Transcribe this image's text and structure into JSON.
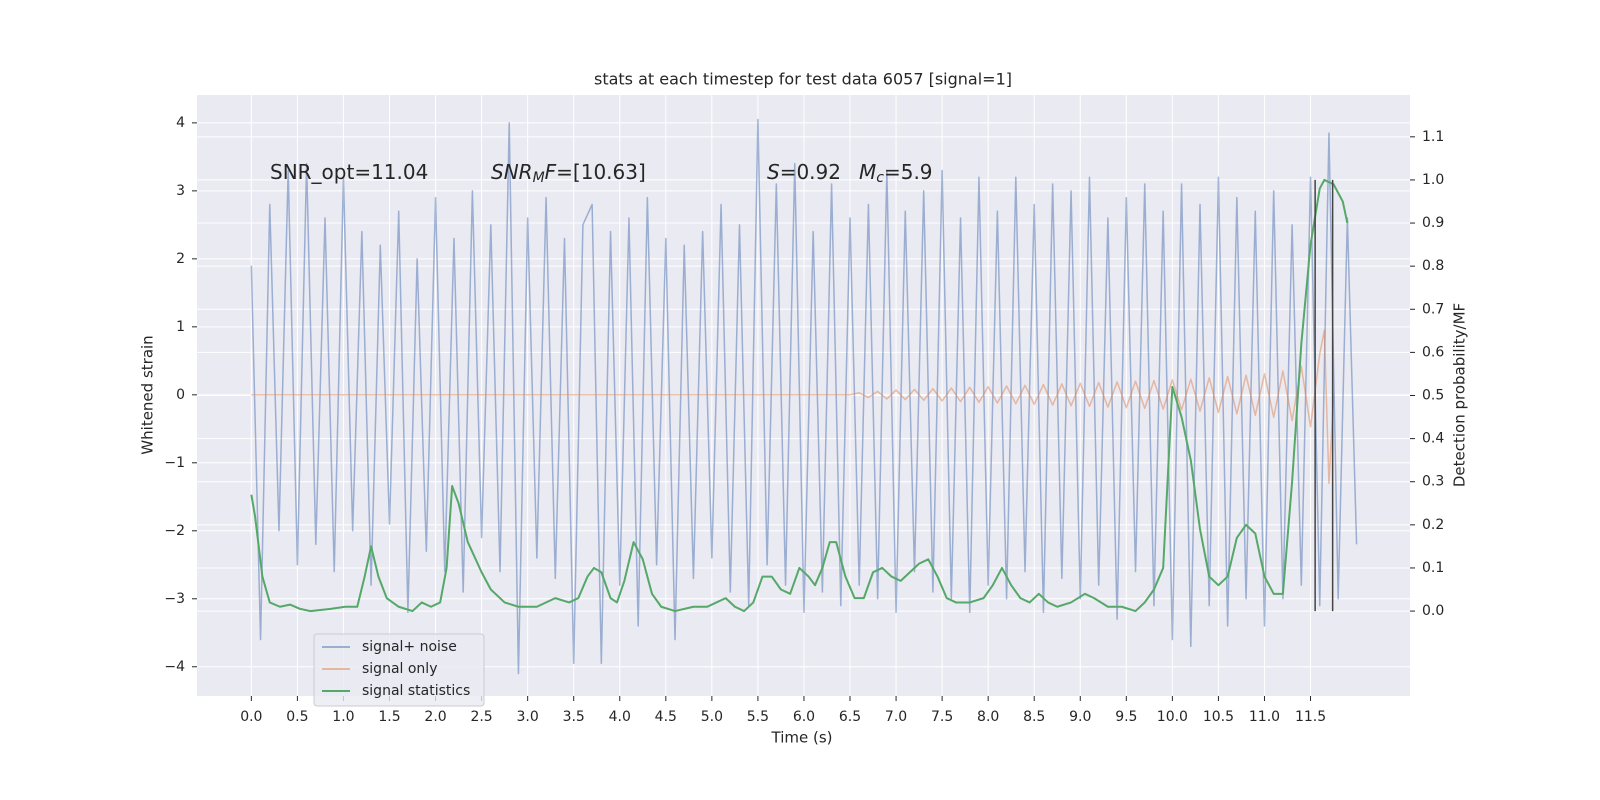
{
  "chart_data": {
    "type": "line",
    "title": "stats at each timestep for test data 6057 [signal=1]",
    "xlabel": "Time (s)",
    "ylabel": "Whitened strain",
    "y2label": "Detection probability/MF",
    "xlim": [
      -0.59,
      12.58
    ],
    "ylim": [
      -4.43,
      4.41
    ],
    "y2lim": [
      -0.197,
      1.197
    ],
    "grid": true,
    "legend": "lower left",
    "xticks": [
      {
        "value": 0,
        "label": "0.0"
      },
      {
        "value": 0.5,
        "label": "0.5"
      },
      {
        "value": 1,
        "label": "1.0"
      },
      {
        "value": 1.5,
        "label": "1.5"
      },
      {
        "value": 2,
        "label": "2.0"
      },
      {
        "value": 2.5,
        "label": "2.5"
      },
      {
        "value": 3,
        "label": "3.0"
      },
      {
        "value": 3.5,
        "label": "3.5"
      },
      {
        "value": 4,
        "label": "4.0"
      },
      {
        "value": 4.5,
        "label": "4.5"
      },
      {
        "value": 5,
        "label": "5.0"
      },
      {
        "value": 5.5,
        "label": "5.5"
      },
      {
        "value": 6,
        "label": "6.0"
      },
      {
        "value": 6.5,
        "label": "6.5"
      },
      {
        "value": 7,
        "label": "7.0"
      },
      {
        "value": 7.5,
        "label": "7.5"
      },
      {
        "value": 8,
        "label": "8.0"
      },
      {
        "value": 8.5,
        "label": "8.5"
      },
      {
        "value": 9,
        "label": "9.0"
      },
      {
        "value": 9.5,
        "label": "9.5"
      },
      {
        "value": 10,
        "label": "10.0"
      },
      {
        "value": 10.5,
        "label": "10.5"
      },
      {
        "value": 11,
        "label": "11.0"
      },
      {
        "value": 11.5,
        "label": "11.5"
      }
    ],
    "yticks": [
      {
        "value": -4,
        "label": "−4"
      },
      {
        "value": -3,
        "label": "−3"
      },
      {
        "value": -2,
        "label": "−2"
      },
      {
        "value": -1,
        "label": "−1"
      },
      0,
      1,
      2,
      3,
      4
    ],
    "y2ticks": [
      {
        "value": 0,
        "label": "0.0"
      },
      {
        "value": 0.1,
        "label": "0.1"
      },
      {
        "value": 0.2,
        "label": "0.2"
      },
      {
        "value": 0.3,
        "label": "0.3"
      },
      {
        "value": 0.4,
        "label": "0.4"
      },
      {
        "value": 0.5,
        "label": "0.5"
      },
      {
        "value": 0.6,
        "label": "0.6"
      },
      {
        "value": 0.7,
        "label": "0.7"
      },
      {
        "value": 0.8,
        "label": "0.8"
      },
      {
        "value": 0.9,
        "label": "0.9"
      },
      {
        "value": 1,
        "label": "1.0"
      },
      {
        "value": 1.1,
        "label": "1.1"
      }
    ],
    "annotations": [
      [
        {
          "text": "SNR_opt=11.04"
        }
      ],
      [
        {
          "text": "SNR",
          "italic": true
        },
        {
          "text": "M",
          "italic": true,
          "sub": true
        },
        {
          "text": "F",
          "italic": true
        },
        {
          "text": "=[10.63]"
        }
      ],
      [
        {
          "text": "S",
          "italic": true
        },
        {
          "text": "=0.92"
        }
      ],
      [
        {
          "text": "M",
          "italic": true
        },
        {
          "text": "c",
          "italic": true,
          "sub": true
        },
        {
          "text": "=5.9"
        }
      ]
    ],
    "vlines": {
      "x": [
        11.55,
        11.74
      ],
      "y2_span": [
        0,
        1
      ],
      "color": "#444444"
    },
    "series": [
      {
        "name": "signal+ noise",
        "color": "#4c72b0",
        "opacity": 0.5,
        "x": [
          0,
          0.1,
          0.2,
          0.3,
          0.4,
          0.5,
          0.6,
          0.7,
          0.8,
          0.9,
          1,
          1.1,
          1.2,
          1.3,
          1.4,
          1.5,
          1.6,
          1.7,
          1.8,
          1.9,
          2,
          2.1,
          2.2,
          2.3,
          2.4,
          2.5,
          2.6,
          2.7,
          2.8,
          2.9,
          3,
          3.1,
          3.2,
          3.3,
          3.4,
          3.5,
          3.6,
          3.7,
          3.8,
          3.9,
          4,
          4.1,
          4.2,
          4.3,
          4.4,
          4.5,
          4.6,
          4.7,
          4.8,
          4.9,
          5,
          5.1,
          5.2,
          5.3,
          5.4,
          5.5,
          5.6,
          5.7,
          5.8,
          5.9,
          6,
          6.1,
          6.2,
          6.3,
          6.4,
          6.5,
          6.6,
          6.7,
          6.8,
          6.9,
          7,
          7.1,
          7.2,
          7.3,
          7.4,
          7.5,
          7.6,
          7.7,
          7.8,
          7.9,
          8,
          8.1,
          8.2,
          8.3,
          8.4,
          8.5,
          8.6,
          8.7,
          8.8,
          8.9,
          9,
          9.1,
          9.2,
          9.3,
          9.4,
          9.5,
          9.6,
          9.7,
          9.8,
          9.9,
          10,
          10.1,
          10.2,
          10.3,
          10.4,
          10.5,
          10.6,
          10.7,
          10.8,
          10.9,
          11,
          11.1,
          11.2,
          11.3,
          11.4,
          11.5,
          11.6,
          11.7,
          11.8,
          11.9,
          12
        ],
        "values": [
          1.9,
          -3.6,
          2.8,
          -2.0,
          3.3,
          -2.5,
          3.4,
          -2.2,
          2.6,
          -2.6,
          3.2,
          -2.0,
          2.4,
          -2.8,
          2.2,
          -1.9,
          2.7,
          -3.2,
          2.0,
          -2.3,
          2.9,
          -2.6,
          2.3,
          -2.9,
          3.0,
          -2.1,
          2.5,
          -2.6,
          4.0,
          -4.1,
          2.6,
          -2.4,
          2.9,
          -2.7,
          2.3,
          -3.95,
          2.5,
          2.8,
          -3.95,
          2.4,
          -2.8,
          2.6,
          -3.4,
          2.9,
          -2.5,
          2.3,
          -3.6,
          2.2,
          -2.7,
          2.4,
          -2.4,
          2.8,
          -2.9,
          2.5,
          -3.1,
          4.05,
          -2.5,
          3.1,
          -2.8,
          3.4,
          -3.2,
          2.4,
          -2.9,
          3.1,
          -3.1,
          2.6,
          -2.8,
          2.8,
          -3.0,
          3.3,
          -3.2,
          2.7,
          -2.6,
          3.0,
          -2.9,
          3.3,
          -3.0,
          2.6,
          -3.2,
          3.2,
          -2.8,
          2.7,
          -3.0,
          3.2,
          -2.6,
          2.8,
          -3.2,
          3.1,
          -2.7,
          3.0,
          -3.0,
          3.2,
          -2.8,
          2.6,
          -3.3,
          2.9,
          -2.6,
          3.1,
          -3.1,
          2.7,
          -3.6,
          3.1,
          -3.7,
          2.8,
          -3.1,
          3.2,
          -3.4,
          2.9,
          -3.0,
          2.7,
          -3.4,
          3.0,
          -3.0,
          2.5,
          -2.8,
          3.2,
          -3.1,
          3.85,
          -3.0,
          2.6,
          -2.2
        ]
      },
      {
        "name": "signal only",
        "color": "#dd8452",
        "opacity": 0.5,
        "x": [
          0,
          6.5,
          6.6,
          6.7,
          6.8,
          6.9,
          7,
          7.1,
          7.2,
          7.3,
          7.4,
          7.5,
          7.6,
          7.7,
          7.8,
          7.9,
          8,
          8.1,
          8.2,
          8.3,
          8.4,
          8.5,
          8.6,
          8.7,
          8.8,
          8.9,
          9,
          9.1,
          9.2,
          9.3,
          9.4,
          9.5,
          9.6,
          9.7,
          9.8,
          9.9,
          10,
          10.1,
          10.2,
          10.3,
          10.4,
          10.5,
          10.6,
          10.7,
          10.8,
          10.9,
          11,
          11.1,
          11.2,
          11.3,
          11.4,
          11.5,
          11.6,
          11.65,
          11.7,
          11.75
        ],
        "values": [
          0,
          0,
          0.03,
          -0.04,
          0.05,
          -0.06,
          0.07,
          -0.07,
          0.08,
          -0.08,
          0.09,
          -0.09,
          0.1,
          -0.1,
          0.11,
          -0.11,
          0.12,
          -0.12,
          0.13,
          -0.13,
          0.14,
          -0.14,
          0.15,
          -0.15,
          0.16,
          -0.16,
          0.17,
          -0.17,
          0.18,
          -0.18,
          0.19,
          -0.19,
          0.2,
          -0.2,
          0.21,
          -0.21,
          0.22,
          -0.22,
          0.23,
          -0.24,
          0.25,
          -0.26,
          0.27,
          -0.28,
          0.29,
          -0.3,
          0.31,
          -0.33,
          0.35,
          -0.38,
          0.42,
          -0.47,
          0.6,
          0.95,
          -1.3,
          0
        ]
      },
      {
        "name": "signal statistics",
        "color": "#55a868",
        "opacity": 1,
        "axis": "y2",
        "x": [
          0,
          0.04,
          0.12,
          0.2,
          0.31,
          0.42,
          0.53,
          0.64,
          0.86,
          1.02,
          1.15,
          1.23,
          1.3,
          1.38,
          1.47,
          1.6,
          1.75,
          1.85,
          1.95,
          2.05,
          2.12,
          2.18,
          2.25,
          2.35,
          2.5,
          2.6,
          2.75,
          2.9,
          3.1,
          3.3,
          3.45,
          3.55,
          3.65,
          3.72,
          3.8,
          3.9,
          3.97,
          4.05,
          4.15,
          4.25,
          4.35,
          4.45,
          4.6,
          4.8,
          4.95,
          5.05,
          5.15,
          5.25,
          5.35,
          5.45,
          5.55,
          5.65,
          5.75,
          5.85,
          5.95,
          6.05,
          6.12,
          6.2,
          6.28,
          6.35,
          6.45,
          6.55,
          6.65,
          6.75,
          6.85,
          6.95,
          7.05,
          7.15,
          7.25,
          7.35,
          7.45,
          7.55,
          7.65,
          7.8,
          7.95,
          8.05,
          8.15,
          8.25,
          8.35,
          8.45,
          8.55,
          8.65,
          8.75,
          8.9,
          9.05,
          9.15,
          9.3,
          9.45,
          9.6,
          9.7,
          9.8,
          9.9,
          10,
          10.1,
          10.2,
          10.3,
          10.4,
          10.5,
          10.6,
          10.7,
          10.8,
          10.9,
          11,
          11.1,
          11.2,
          11.3,
          11.4,
          11.5,
          11.6,
          11.65,
          11.75,
          11.85,
          11.9
        ],
        "values": [
          0.27,
          0.22,
          0.08,
          0.02,
          0.01,
          0.015,
          0.005,
          0,
          0.005,
          0.01,
          0.01,
          0.08,
          0.15,
          0.08,
          0.03,
          0.01,
          0,
          0.02,
          0.01,
          0.02,
          0.1,
          0.29,
          0.25,
          0.16,
          0.09,
          0.05,
          0.02,
          0.01,
          0.01,
          0.03,
          0.02,
          0.03,
          0.08,
          0.1,
          0.09,
          0.03,
          0.02,
          0.07,
          0.16,
          0.12,
          0.04,
          0.01,
          0,
          0.01,
          0.01,
          0.02,
          0.03,
          0.01,
          0,
          0.02,
          0.08,
          0.08,
          0.05,
          0.04,
          0.1,
          0.08,
          0.06,
          0.1,
          0.16,
          0.16,
          0.08,
          0.03,
          0.03,
          0.09,
          0.1,
          0.08,
          0.07,
          0.09,
          0.11,
          0.12,
          0.08,
          0.03,
          0.02,
          0.02,
          0.03,
          0.06,
          0.1,
          0.06,
          0.03,
          0.02,
          0.04,
          0.02,
          0.01,
          0.02,
          0.04,
          0.03,
          0.01,
          0.01,
          0,
          0.02,
          0.05,
          0.1,
          0.52,
          0.45,
          0.35,
          0.19,
          0.08,
          0.06,
          0.08,
          0.17,
          0.2,
          0.18,
          0.08,
          0.04,
          0.04,
          0.3,
          0.62,
          0.85,
          0.98,
          1,
          0.99,
          0.95,
          0.9
        ]
      }
    ]
  }
}
